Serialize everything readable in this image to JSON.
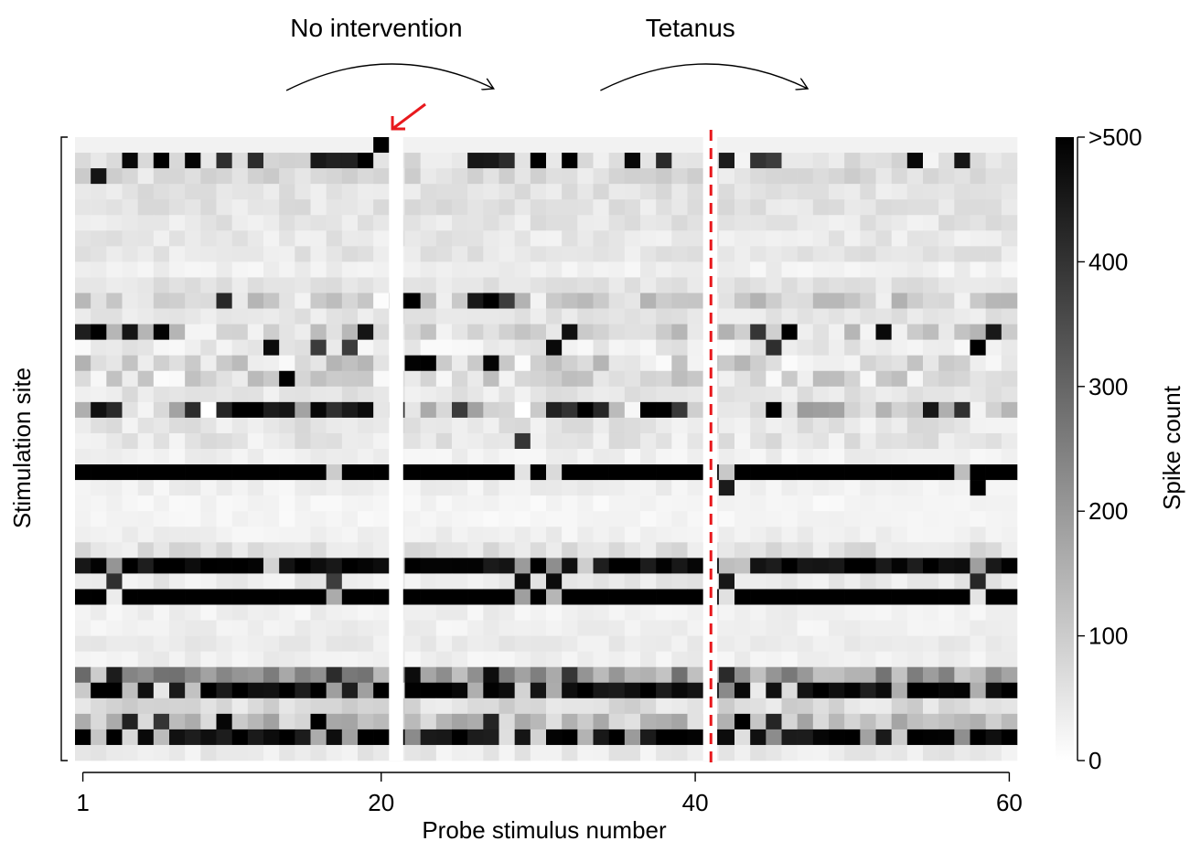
{
  "chart_data": {
    "type": "heatmap",
    "title": "",
    "xlabel": "Probe stimulus number",
    "ylabel": "Stimulation site",
    "x_ticks": [
      "1",
      "20",
      "40",
      "60"
    ],
    "x_tick_values": [
      1,
      20,
      40,
      60
    ],
    "xlim": [
      1,
      60
    ],
    "n_columns": 60,
    "n_rows": 40,
    "gap_columns": [
      20,
      40
    ],
    "colorbar": {
      "label": "Spike count",
      "ticks": [
        "0",
        "100",
        "200",
        "300",
        "400",
        ">500"
      ],
      "tick_values": [
        0,
        100,
        200,
        300,
        400,
        500
      ],
      "range": [
        0,
        500
      ],
      "colormap": "white-to-black"
    },
    "annotations": [
      {
        "text": "No intervention",
        "x_start": 16,
        "x_end": 26
      },
      {
        "text": "Tetanus",
        "x_start": 36,
        "x_end": 46
      }
    ],
    "tetanus_marker_x": 40.5,
    "red_arrow_target": {
      "x": 20,
      "row": 0
    },
    "colors": {
      "marker": "#e8191d",
      "arrow": "#e8191d",
      "high": "#000000",
      "low": "#ffffff"
    },
    "row_profiles": [
      {
        "row": 0,
        "base": 25,
        "spikes": [
          [
            20,
            510
          ]
        ]
      },
      {
        "row": 1,
        "base": 60,
        "var": 80,
        "hot": [
          4,
          6,
          8,
          10,
          12,
          16,
          17,
          18,
          19,
          26,
          27,
          28,
          30,
          32,
          36,
          38,
          42,
          44,
          45,
          54,
          57
        ]
      },
      {
        "row": 2,
        "base": 70,
        "var": 70,
        "hot": [
          2
        ]
      },
      {
        "row": 3,
        "base": 55,
        "var": 50
      },
      {
        "row": 4,
        "base": 55,
        "var": 50
      },
      {
        "row": 5,
        "base": 50,
        "var": 50
      },
      {
        "row": 6,
        "base": 45,
        "var": 45
      },
      {
        "row": 7,
        "base": 50,
        "var": 45
      },
      {
        "row": 8,
        "base": 30,
        "var": 30
      },
      {
        "row": 9,
        "base": 55,
        "var": 40
      },
      {
        "row": 10,
        "base": 80,
        "var": 150,
        "hot": [
          10,
          21,
          22,
          26,
          27,
          28
        ]
      },
      {
        "row": 11,
        "base": 50,
        "var": 40
      },
      {
        "row": 12,
        "base": 90,
        "var": 140,
        "hot": [
          1,
          2,
          4,
          6,
          19,
          32,
          44,
          46,
          52,
          59
        ]
      },
      {
        "row": 13,
        "base": 40,
        "var": 60,
        "hot": [
          13,
          16,
          18,
          31,
          45,
          58
        ]
      },
      {
        "row": 14,
        "base": 80,
        "var": 150,
        "hot": [
          22,
          23,
          27
        ]
      },
      {
        "row": 15,
        "base": 70,
        "var": 130,
        "hot": [
          14
        ]
      },
      {
        "row": 16,
        "base": 50,
        "var": 50
      },
      {
        "row": 17,
        "base": 100,
        "var": 200,
        "hot": [
          2,
          3,
          8,
          10,
          11,
          12,
          13,
          14,
          16,
          17,
          18,
          19,
          21,
          25,
          31,
          32,
          33,
          34,
          37,
          38,
          39,
          45,
          55,
          57
        ]
      },
      {
        "row": 18,
        "base": 50,
        "var": 60,
        "hot": []
      },
      {
        "row": 19,
        "base": 50,
        "var": 60,
        "hot": [
          29
        ]
      },
      {
        "row": 20,
        "base": 30,
        "var": 30
      },
      {
        "row": 21,
        "base": 520,
        "var": 0,
        "cold": [
          17,
          29,
          31,
          42,
          57
        ]
      },
      {
        "row": 22,
        "base": 30,
        "var": 30,
        "hot": [
          42,
          58
        ]
      },
      {
        "row": 23,
        "base": 20,
        "var": 20
      },
      {
        "row": 24,
        "base": 20,
        "var": 20
      },
      {
        "row": 25,
        "base": 30,
        "var": 30
      },
      {
        "row": 26,
        "base": 60,
        "var": 60
      },
      {
        "row": 27,
        "base": 480,
        "var": 80,
        "cold": [
          3,
          13,
          21,
          29,
          31,
          33,
          42,
          43,
          58
        ]
      },
      {
        "row": 28,
        "base": 40,
        "var": 40,
        "hot": [
          3,
          17,
          29,
          31,
          42,
          58
        ]
      },
      {
        "row": 29,
        "base": 520,
        "var": 0,
        "cold": [
          3,
          17,
          29,
          31,
          42,
          58
        ]
      },
      {
        "row": 30,
        "base": 30,
        "var": 30
      },
      {
        "row": 31,
        "base": 30,
        "var": 30
      },
      {
        "row": 32,
        "base": 40,
        "var": 30
      },
      {
        "row": 33,
        "base": 30,
        "var": 30
      },
      {
        "row": 34,
        "base": 200,
        "var": 200,
        "hot": [
          3,
          17,
          22,
          27,
          32,
          42
        ]
      },
      {
        "row": 35,
        "base": 480,
        "var": 80,
        "cold": [
          1,
          4,
          6,
          8,
          17,
          19,
          21,
          26,
          29,
          31,
          42,
          44,
          46,
          53,
          58
        ]
      },
      {
        "row": 36,
        "base": 70,
        "var": 70
      },
      {
        "row": 37,
        "base": 120,
        "var": 130,
        "hot": [
          4,
          6,
          10,
          16,
          27,
          43,
          45
        ]
      },
      {
        "row": 38,
        "base": 480,
        "var": 80,
        "cold": [
          2,
          4,
          6,
          16,
          18,
          22,
          28,
          30,
          33,
          36,
          43,
          45,
          51,
          53,
          57
        ]
      },
      {
        "row": 39,
        "base": 40,
        "var": 40
      }
    ]
  }
}
